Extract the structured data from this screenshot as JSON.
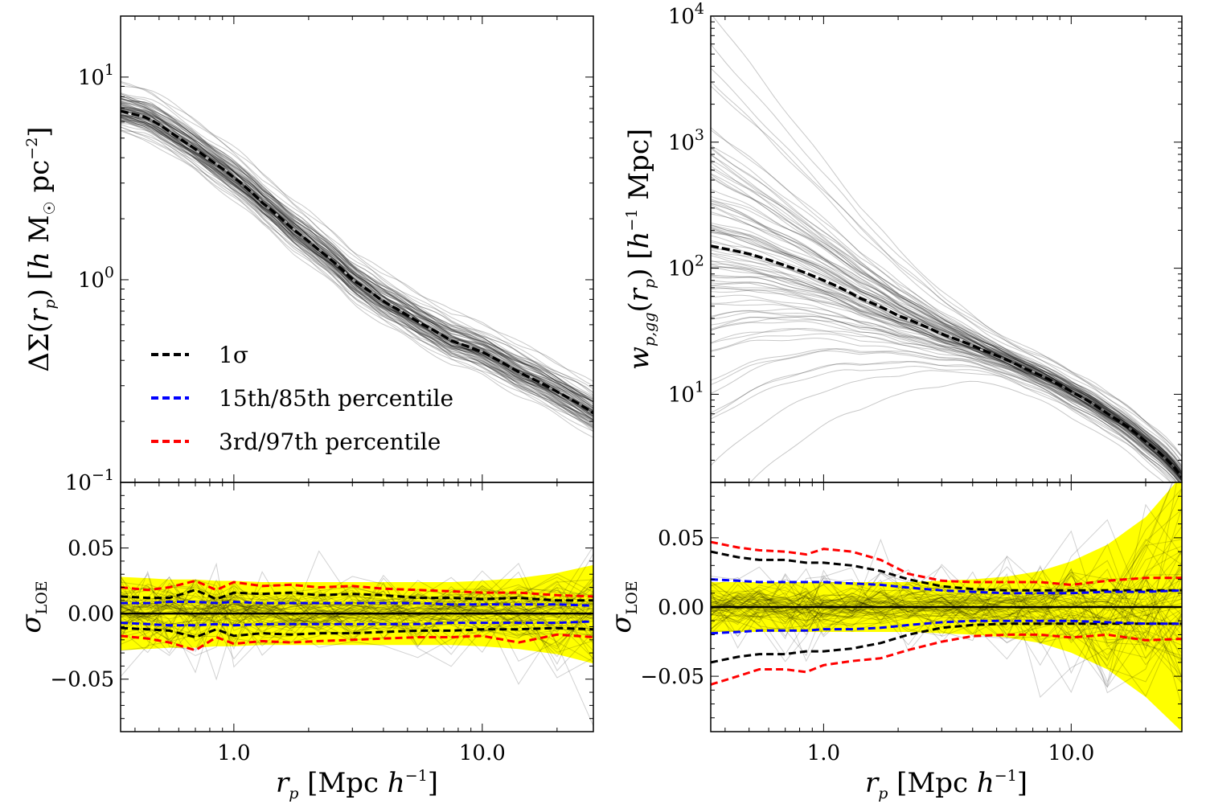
{
  "colors": {
    "band": "#ffff00",
    "sigma1": "#000000",
    "p15_85": "#0000ff",
    "p3_97": "#ff0000",
    "curves": "#000000"
  },
  "xaxis": {
    "label": "r_p [Mpc h^-1]",
    "xlim": [
      0.35,
      28
    ],
    "ticks": [
      {
        "value": 1,
        "label": "1.0"
      },
      {
        "value": 10,
        "label": "10.0"
      }
    ]
  },
  "legend": {
    "position": "lower-left",
    "entries": [
      {
        "label": "1σ",
        "color": "#000000"
      },
      {
        "label": "15th/85th percentile",
        "color": "#0000ff"
      },
      {
        "label": "3rd/97th percentile",
        "color": "#ff0000"
      }
    ]
  },
  "chart_data": [
    {
      "id": "delta-sigma",
      "type": "line",
      "ylabel": "ΔΣ(r_p) [h M☉ pc^-2]",
      "yscale": "log",
      "ylim": [
        0.1,
        20
      ],
      "yticks": [
        {
          "value": 0.1,
          "base": "10",
          "exp": "−1"
        },
        {
          "value": 1,
          "base": "10",
          "exp": "0"
        },
        {
          "value": 10,
          "base": "10",
          "exp": "1"
        }
      ],
      "x": [
        0.35,
        0.45,
        0.6,
        0.8,
        1.0,
        1.3,
        1.7,
        2.2,
        3.0,
        4.0,
        5.5,
        7.5,
        10,
        14,
        20,
        28
      ],
      "median": [
        6.8,
        6.3,
        5.0,
        3.9,
        3.2,
        2.4,
        1.8,
        1.4,
        1.0,
        0.78,
        0.62,
        0.5,
        0.44,
        0.35,
        0.28,
        0.22
      ],
      "spread_dex": 0.055,
      "n_curves": 90
    },
    {
      "id": "wp-gg",
      "type": "line",
      "ylabel": "w_p,gg(r_p) [h^-1 Mpc]",
      "yscale": "log",
      "ylim": [
        2,
        10000
      ],
      "yticks": [
        {
          "value": 10,
          "base": "10",
          "exp": "1"
        },
        {
          "value": 100,
          "base": "10",
          "exp": "2"
        },
        {
          "value": 1000,
          "base": "10",
          "exp": "3"
        },
        {
          "value": 10000,
          "base": "10",
          "exp": "4"
        }
      ],
      "x": [
        0.35,
        0.5,
        0.7,
        1.0,
        1.4,
        2.0,
        3.0,
        4.5,
        6.5,
        10,
        14,
        20,
        28
      ],
      "median": [
        150,
        130,
        105,
        80,
        58,
        42,
        30,
        22,
        16,
        10.5,
        7,
        4.2,
        2.2
      ],
      "spread_dex_small_r": 0.55,
      "spread_dex_large_r": 0.06,
      "n_curves": 90
    },
    {
      "id": "sigma-loe-left",
      "type": "line",
      "ylabel": "σ_LOE",
      "ylim": [
        -0.09,
        0.1
      ],
      "yticks": [
        {
          "value": -0.05,
          "label": "−0.05"
        },
        {
          "value": 0,
          "label": "0.00"
        },
        {
          "value": 0.05,
          "label": "0.05"
        }
      ],
      "x": [
        0.35,
        0.45,
        0.55,
        0.7,
        0.85,
        1.0,
        1.3,
        1.7,
        2.2,
        3.0,
        4.0,
        5.5,
        7.5,
        10,
        14,
        20,
        28
      ],
      "band_upper": [
        0.028,
        0.027,
        0.026,
        0.026,
        0.025,
        0.025,
        0.024,
        0.024,
        0.024,
        0.024,
        0.024,
        0.024,
        0.024,
        0.025,
        0.027,
        0.031,
        0.037
      ],
      "band_lower": [
        -0.028,
        -0.027,
        -0.026,
        -0.026,
        -0.025,
        -0.025,
        -0.024,
        -0.024,
        -0.024,
        -0.024,
        -0.024,
        -0.024,
        -0.024,
        -0.025,
        -0.027,
        -0.031,
        -0.038
      ],
      "sigma1_upper": [
        0.013,
        0.012,
        0.012,
        0.018,
        0.011,
        0.016,
        0.015,
        0.016,
        0.014,
        0.015,
        0.014,
        0.012,
        0.012,
        0.011,
        0.012,
        0.01,
        0.01
      ],
      "sigma1_lower": [
        -0.011,
        -0.012,
        -0.013,
        -0.018,
        -0.012,
        -0.017,
        -0.015,
        -0.016,
        -0.015,
        -0.015,
        -0.014,
        -0.013,
        -0.013,
        -0.012,
        -0.012,
        -0.011,
        -0.012
      ],
      "p15_85_upper": [
        0.008,
        0.008,
        0.009,
        0.009,
        0.008,
        0.009,
        0.008,
        0.008,
        0.008,
        0.008,
        0.008,
        0.008,
        0.007,
        0.007,
        0.007,
        0.007,
        0.006
      ],
      "p15_85_lower": [
        -0.007,
        -0.008,
        -0.009,
        -0.009,
        -0.008,
        -0.009,
        -0.008,
        -0.008,
        -0.008,
        -0.008,
        -0.008,
        -0.008,
        -0.007,
        -0.007,
        -0.007,
        -0.007,
        -0.006
      ],
      "p3_97_upper": [
        0.02,
        0.018,
        0.02,
        0.025,
        0.018,
        0.024,
        0.021,
        0.022,
        0.02,
        0.021,
        0.019,
        0.018,
        0.017,
        0.016,
        0.016,
        0.014,
        0.013
      ],
      "p3_97_lower": [
        -0.017,
        -0.019,
        -0.022,
        -0.028,
        -0.018,
        -0.023,
        -0.021,
        -0.022,
        -0.021,
        -0.02,
        -0.019,
        -0.018,
        -0.018,
        -0.017,
        -0.022,
        -0.016,
        -0.018
      ],
      "n_curves": 60
    },
    {
      "id": "sigma-loe-right",
      "type": "line",
      "ylabel": "σ_LOE",
      "ylim": [
        -0.09,
        0.09
      ],
      "yticks": [
        {
          "value": -0.05,
          "label": "−0.05"
        },
        {
          "value": 0,
          "label": "0.00"
        },
        {
          "value": 0.05,
          "label": "0.05"
        }
      ],
      "x": [
        0.35,
        0.45,
        0.55,
        0.7,
        0.85,
        1.0,
        1.3,
        1.7,
        2.2,
        3.0,
        4.0,
        5.5,
        7.5,
        10,
        14,
        20,
        28
      ],
      "band_upper": [
        0.018,
        0.018,
        0.018,
        0.018,
        0.018,
        0.018,
        0.018,
        0.018,
        0.018,
        0.019,
        0.02,
        0.022,
        0.026,
        0.033,
        0.045,
        0.065,
        0.095
      ],
      "band_lower": [
        -0.018,
        -0.018,
        -0.018,
        -0.018,
        -0.018,
        -0.018,
        -0.018,
        -0.018,
        -0.018,
        -0.019,
        -0.02,
        -0.022,
        -0.026,
        -0.033,
        -0.045,
        -0.065,
        -0.09
      ],
      "sigma1_upper": [
        0.04,
        0.036,
        0.034,
        0.034,
        0.032,
        0.032,
        0.03,
        0.026,
        0.02,
        0.015,
        0.013,
        0.012,
        0.012,
        0.012,
        0.012,
        0.012,
        0.012
      ],
      "sigma1_lower": [
        -0.04,
        -0.036,
        -0.034,
        -0.034,
        -0.032,
        -0.032,
        -0.03,
        -0.026,
        -0.02,
        -0.015,
        -0.013,
        -0.012,
        -0.012,
        -0.012,
        -0.012,
        -0.012,
        -0.012
      ],
      "p15_85_upper": [
        0.02,
        0.019,
        0.018,
        0.018,
        0.018,
        0.018,
        0.017,
        0.016,
        0.014,
        0.012,
        0.011,
        0.01,
        0.01,
        0.01,
        0.011,
        0.011,
        0.012
      ],
      "p15_85_lower": [
        -0.019,
        -0.018,
        -0.017,
        -0.017,
        -0.017,
        -0.016,
        -0.016,
        -0.015,
        -0.013,
        -0.011,
        -0.01,
        -0.01,
        -0.01,
        -0.01,
        -0.011,
        -0.012,
        -0.012
      ],
      "p3_97_upper": [
        0.047,
        0.043,
        0.041,
        0.04,
        0.038,
        0.042,
        0.04,
        0.034,
        0.024,
        0.019,
        0.018,
        0.018,
        0.018,
        0.016,
        0.019,
        0.021,
        0.021
      ],
      "p3_97_lower": [
        -0.056,
        -0.05,
        -0.045,
        -0.045,
        -0.047,
        -0.042,
        -0.039,
        -0.037,
        -0.031,
        -0.025,
        -0.021,
        -0.02,
        -0.02,
        -0.022,
        -0.02,
        -0.024,
        -0.023
      ],
      "n_curves": 60
    }
  ]
}
